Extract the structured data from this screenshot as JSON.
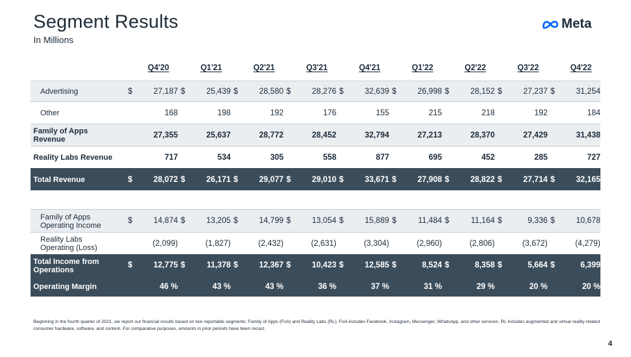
{
  "header": {
    "title": "Segment Results",
    "subtitle": "In Millions",
    "logo_text": "Meta"
  },
  "columns": [
    "Q4'20",
    "Q1'21",
    "Q2'21",
    "Q3'21",
    "Q4'21",
    "Q1'22",
    "Q2'22",
    "Q3'22",
    "Q4'22"
  ],
  "revenue_table": [
    {
      "label": "Advertising",
      "dollar": true,
      "values": [
        "27,187",
        "25,439",
        "28,580",
        "28,276",
        "32,639",
        "26,998",
        "28,152",
        "27,237",
        "31,254"
      ]
    },
    {
      "label": "Other",
      "dollar": false,
      "values": [
        "168",
        "198",
        "192",
        "176",
        "155",
        "215",
        "218",
        "192",
        "184"
      ]
    },
    {
      "label": "Family of Apps Revenue",
      "dollar": false,
      "values": [
        "27,355",
        "25,637",
        "28,772",
        "28,452",
        "32,794",
        "27,213",
        "28,370",
        "27,429",
        "31,438"
      ]
    },
    {
      "label": "Reality Labs Revenue",
      "dollar": false,
      "values": [
        "717",
        "534",
        "305",
        "558",
        "877",
        "695",
        "452",
        "285",
        "727"
      ]
    },
    {
      "label": "Total Revenue",
      "dollar": true,
      "values": [
        "28,072",
        "26,171",
        "29,077",
        "29,010",
        "33,671",
        "27,908",
        "28,822",
        "27,714",
        "32,165"
      ]
    }
  ],
  "income_table": [
    {
      "label": "Family of Apps Operating Income",
      "dollar": true,
      "values": [
        "14,874",
        "13,205",
        "14,799",
        "13,054",
        "15,889",
        "11,484",
        "11,164",
        "9,336",
        "10,678"
      ]
    },
    {
      "label": "Reality Labs Operating (Loss)",
      "dollar": false,
      "values": [
        "(2,099)",
        "(1,827)",
        "(2,432)",
        "(2,631)",
        "(3,304)",
        "(2,960)",
        "(2,806)",
        "(3,672)",
        "(4,279)"
      ]
    },
    {
      "label": "Total Income from Operations",
      "dollar": true,
      "values": [
        "12,775",
        "11,378",
        "12,367",
        "10,423",
        "12,585",
        "8,524",
        "8,358",
        "5,664",
        "6,399"
      ]
    },
    {
      "label": "Operating Margin",
      "dollar": false,
      "values": [
        "46 %",
        "43 %",
        "43 %",
        "36 %",
        "37 %",
        "31 %",
        "29 %",
        "20 %",
        "20 %"
      ]
    }
  ],
  "currency_symbol": "$",
  "footnote": "Beginning in the fourth quarter of 2021, we report our financial results based on two reportable segments: Family of Apps (FoA) and Reality Labs (RL). FoA includes Facebook, Instagram, Messenger, WhatsApp, and other services. RL includes augmented and virtual reality related consumer hardware, software, and content. For comparative purposes, amounts in prior periods have been recast.",
  "page_number": "4",
  "colors": {
    "dark_row": "#3b4d5b",
    "shade_row": "#eaeef1",
    "text": "#1c2b39",
    "logo_blue": "#0866ff"
  }
}
